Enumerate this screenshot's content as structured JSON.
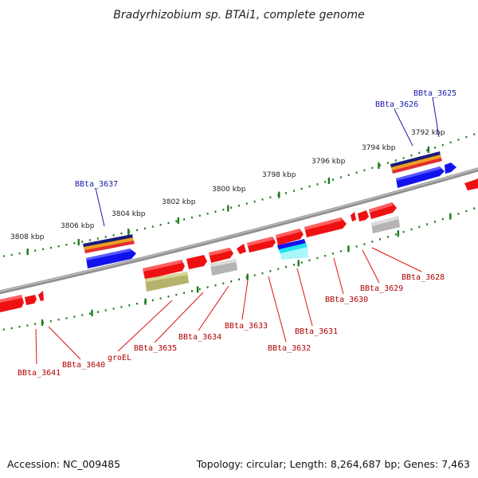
{
  "title": "Bradyrhizobium sp. BTAi1, complete genome",
  "accession": "Accession: NC_009485",
  "topology": "Topology: circular; Length: 8,264,687 bp; Genes: 7,463",
  "colors": {
    "backbone": "#8c8c8c",
    "tick_dots": "#1e7a1e",
    "gene_red": "#ee1111",
    "gene_blue": "#1212ee",
    "gene_gray": "#b4b4b4",
    "gene_olive": "#b5b26a",
    "cyan_band": "#22e4f0",
    "navy_band": "#1a1a7a",
    "orange_band": "#f0a020",
    "label_blue": "#1a1aa8",
    "label_red": "#b00000"
  },
  "scale_ticks": [
    "3808 kbp",
    "3806 kbp",
    "3804 kbp",
    "3802 kbp",
    "3800 kbp",
    "3798 kbp",
    "3796 kbp",
    "3794 kbp",
    "3792 kbp"
  ],
  "gene_labels_top": [
    "BBta_3637",
    "BBta_3626",
    "BBta_3625"
  ],
  "gene_labels_bottom": [
    "BBta_3641",
    "BBta_3640",
    "groEL",
    "BBta_3635",
    "BBta_3634",
    "BBta_3633",
    "BBta_3632",
    "BBta_3631",
    "BBta_3630",
    "BBta_3629",
    "BBta_3628"
  ]
}
